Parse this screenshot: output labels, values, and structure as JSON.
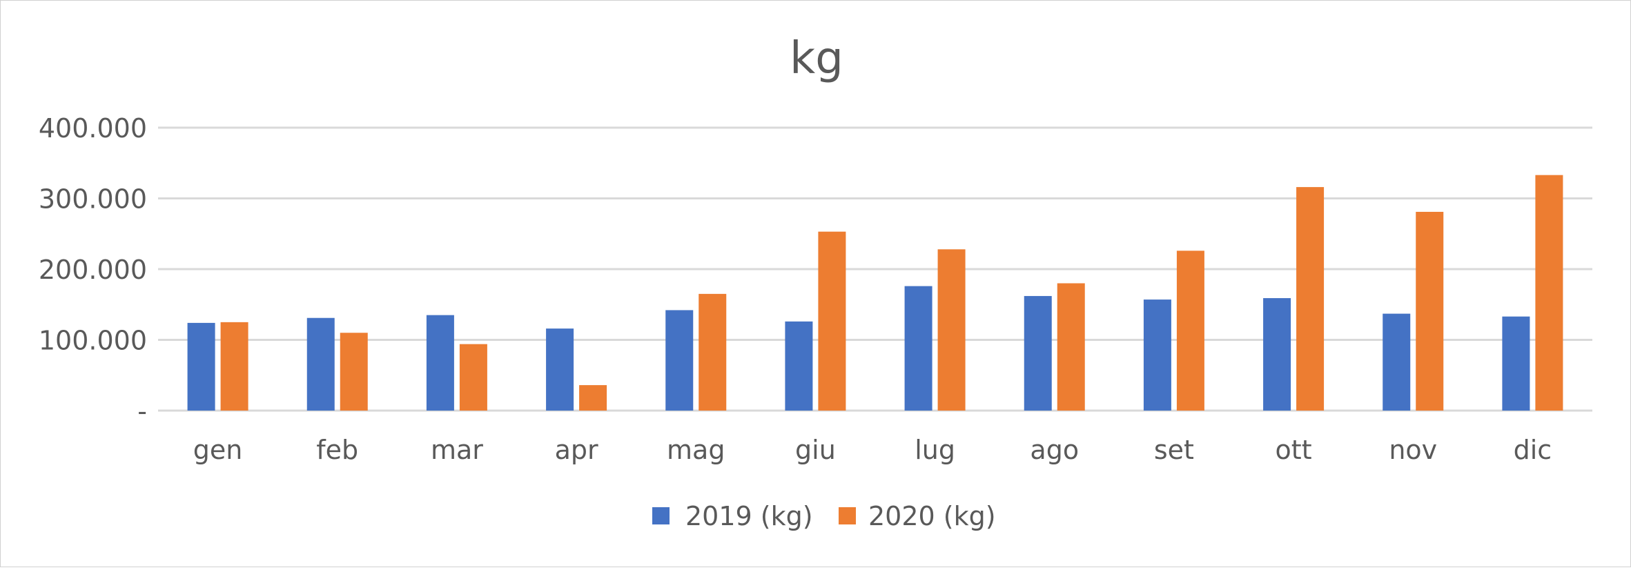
{
  "chart_data": {
    "type": "bar",
    "title": "kg",
    "categories": [
      "gen",
      "feb",
      "mar",
      "apr",
      "mag",
      "giu",
      "lug",
      "ago",
      "set",
      "ott",
      "nov",
      "dic"
    ],
    "series": [
      {
        "name": "2019 (kg)",
        "color": "#4472c4",
        "values": [
          124000,
          131000,
          135000,
          116000,
          142000,
          126000,
          176000,
          162000,
          157000,
          159000,
          137000,
          133000
        ]
      },
      {
        "name": "2020 (kg)",
        "color": "#ed7d31",
        "values": [
          125000,
          110000,
          94000,
          36000,
          165000,
          253000,
          228000,
          180000,
          226000,
          316000,
          281000,
          333000
        ]
      }
    ],
    "ylim": [
      0,
      400000
    ],
    "yticks": [
      0,
      100000,
      200000,
      300000,
      400000
    ],
    "ytick_labels": [
      "-",
      "100.000",
      "200.000",
      "300.000",
      "400.000"
    ],
    "grid": true,
    "legend_position": "bottom"
  }
}
